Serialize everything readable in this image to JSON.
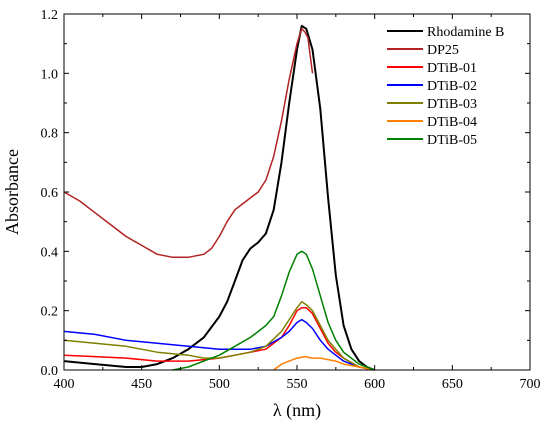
{
  "chart_data": {
    "type": "line",
    "xlabel": "λ (nm)",
    "ylabel": "Absorbance",
    "xlim": [
      400,
      700
    ],
    "ylim": [
      0,
      1.2
    ],
    "x_ticks": [
      400,
      450,
      500,
      550,
      600,
      650,
      700
    ],
    "x_tick_labels": [
      "400",
      "450",
      "500",
      "550",
      "600",
      "650",
      "700"
    ],
    "y_ticks": [
      0,
      0.2,
      0.4,
      0.6,
      0.8,
      1.0,
      1.2
    ],
    "y_tick_labels": [
      "0.0",
      "0.2",
      "0.4",
      "0.6",
      "0.8",
      "1.0",
      "1.2"
    ],
    "grid": false,
    "legend_position": "top-right",
    "series": [
      {
        "name": "Rhodamine B",
        "color": "#000000",
        "points": [
          [
            400,
            0.03
          ],
          [
            420,
            0.02
          ],
          [
            440,
            0.01
          ],
          [
            450,
            0.01
          ],
          [
            460,
            0.02
          ],
          [
            470,
            0.04
          ],
          [
            480,
            0.07
          ],
          [
            490,
            0.11
          ],
          [
            500,
            0.18
          ],
          [
            505,
            0.23
          ],
          [
            510,
            0.3
          ],
          [
            515,
            0.37
          ],
          [
            520,
            0.41
          ],
          [
            525,
            0.43
          ],
          [
            530,
            0.46
          ],
          [
            535,
            0.54
          ],
          [
            540,
            0.7
          ],
          [
            545,
            0.9
          ],
          [
            550,
            1.08
          ],
          [
            553,
            1.16
          ],
          [
            556,
            1.15
          ],
          [
            560,
            1.08
          ],
          [
            565,
            0.88
          ],
          [
            570,
            0.58
          ],
          [
            575,
            0.32
          ],
          [
            580,
            0.15
          ],
          [
            585,
            0.07
          ],
          [
            590,
            0.03
          ],
          [
            595,
            0.01
          ],
          [
            600,
            0.0
          ]
        ]
      },
      {
        "name": "DP25",
        "color": "#b22222",
        "points": [
          [
            400,
            0.6
          ],
          [
            410,
            0.57
          ],
          [
            420,
            0.53
          ],
          [
            430,
            0.49
          ],
          [
            440,
            0.45
          ],
          [
            450,
            0.42
          ],
          [
            460,
            0.39
          ],
          [
            470,
            0.38
          ],
          [
            480,
            0.38
          ],
          [
            490,
            0.39
          ],
          [
            495,
            0.41
          ],
          [
            500,
            0.45
          ],
          [
            505,
            0.5
          ],
          [
            510,
            0.54
          ],
          [
            515,
            0.56
          ],
          [
            520,
            0.58
          ],
          [
            525,
            0.6
          ],
          [
            530,
            0.64
          ],
          [
            535,
            0.72
          ],
          [
            540,
            0.84
          ],
          [
            545,
            0.98
          ],
          [
            550,
            1.1
          ],
          [
            553,
            1.15
          ],
          [
            555,
            1.14
          ],
          [
            557,
            1.12
          ],
          [
            560,
            1.0
          ]
        ]
      },
      {
        "name": "DTiB-01",
        "color": "#ff0000",
        "points": [
          [
            400,
            0.05
          ],
          [
            420,
            0.045
          ],
          [
            440,
            0.04
          ],
          [
            460,
            0.03
          ],
          [
            480,
            0.03
          ],
          [
            500,
            0.04
          ],
          [
            510,
            0.05
          ],
          [
            520,
            0.06
          ],
          [
            530,
            0.07
          ],
          [
            540,
            0.11
          ],
          [
            545,
            0.15
          ],
          [
            550,
            0.2
          ],
          [
            553,
            0.21
          ],
          [
            556,
            0.21
          ],
          [
            560,
            0.19
          ],
          [
            565,
            0.14
          ],
          [
            570,
            0.09
          ],
          [
            575,
            0.06
          ],
          [
            580,
            0.04
          ],
          [
            590,
            0.01
          ],
          [
            600,
            0.0
          ]
        ]
      },
      {
        "name": "DTiB-02",
        "color": "#0000ff",
        "points": [
          [
            400,
            0.13
          ],
          [
            420,
            0.12
          ],
          [
            440,
            0.1
          ],
          [
            460,
            0.09
          ],
          [
            480,
            0.08
          ],
          [
            500,
            0.07
          ],
          [
            510,
            0.07
          ],
          [
            520,
            0.07
          ],
          [
            530,
            0.08
          ],
          [
            540,
            0.11
          ],
          [
            545,
            0.13
          ],
          [
            550,
            0.16
          ],
          [
            553,
            0.17
          ],
          [
            556,
            0.16
          ],
          [
            560,
            0.14
          ],
          [
            565,
            0.1
          ],
          [
            570,
            0.07
          ],
          [
            575,
            0.05
          ],
          [
            580,
            0.03
          ],
          [
            590,
            0.01
          ],
          [
            600,
            0.0
          ]
        ]
      },
      {
        "name": "DTiB-03",
        "color": "#808000",
        "points": [
          [
            400,
            0.1
          ],
          [
            420,
            0.09
          ],
          [
            440,
            0.08
          ],
          [
            460,
            0.06
          ],
          [
            480,
            0.05
          ],
          [
            490,
            0.04
          ],
          [
            500,
            0.04
          ],
          [
            510,
            0.05
          ],
          [
            520,
            0.06
          ],
          [
            530,
            0.08
          ],
          [
            540,
            0.13
          ],
          [
            545,
            0.17
          ],
          [
            550,
            0.21
          ],
          [
            553,
            0.23
          ],
          [
            556,
            0.22
          ],
          [
            560,
            0.2
          ],
          [
            565,
            0.15
          ],
          [
            570,
            0.1
          ],
          [
            575,
            0.07
          ],
          [
            580,
            0.04
          ],
          [
            590,
            0.01
          ],
          [
            600,
            0.0
          ]
        ]
      },
      {
        "name": "DTiB-04",
        "color": "#ff8000",
        "points": [
          [
            535,
            0.0
          ],
          [
            540,
            0.02
          ],
          [
            545,
            0.03
          ],
          [
            550,
            0.04
          ],
          [
            555,
            0.045
          ],
          [
            560,
            0.04
          ],
          [
            565,
            0.04
          ],
          [
            570,
            0.035
          ],
          [
            575,
            0.03
          ],
          [
            580,
            0.02
          ],
          [
            590,
            0.01
          ],
          [
            600,
            0.0
          ]
        ]
      },
      {
        "name": "DTiB-05",
        "color": "#008000",
        "points": [
          [
            470,
            0.0
          ],
          [
            480,
            0.01
          ],
          [
            490,
            0.03
          ],
          [
            500,
            0.05
          ],
          [
            510,
            0.08
          ],
          [
            520,
            0.11
          ],
          [
            530,
            0.15
          ],
          [
            535,
            0.18
          ],
          [
            540,
            0.25
          ],
          [
            545,
            0.33
          ],
          [
            550,
            0.39
          ],
          [
            553,
            0.4
          ],
          [
            556,
            0.39
          ],
          [
            560,
            0.34
          ],
          [
            565,
            0.25
          ],
          [
            570,
            0.16
          ],
          [
            575,
            0.1
          ],
          [
            580,
            0.06
          ],
          [
            590,
            0.02
          ],
          [
            600,
            0.0
          ]
        ]
      }
    ]
  }
}
